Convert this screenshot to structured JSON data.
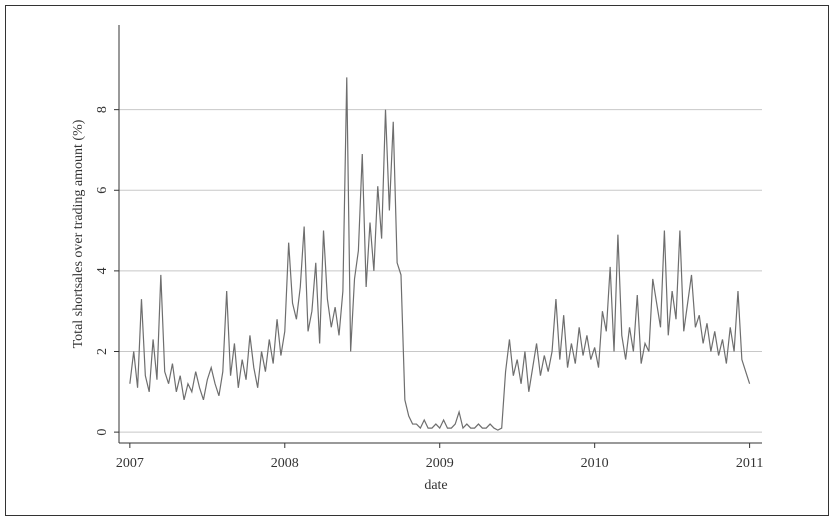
{
  "chart_data": {
    "type": "line",
    "xlabel": "date",
    "ylabel": "Total shortsales over trading amount (%)",
    "x": [
      2007,
      2007.025,
      2007.05,
      2007.075,
      2007.1,
      2007.125,
      2007.15,
      2007.175,
      2007.2,
      2007.225,
      2007.25,
      2007.275,
      2007.3,
      2007.325,
      2007.35,
      2007.375,
      2007.4,
      2007.425,
      2007.45,
      2007.475,
      2007.5,
      2007.525,
      2007.55,
      2007.575,
      2007.6,
      2007.625,
      2007.65,
      2007.675,
      2007.7,
      2007.725,
      2007.75,
      2007.775,
      2007.8,
      2007.825,
      2007.85,
      2007.875,
      2007.9,
      2007.925,
      2007.95,
      2007.975,
      2008,
      2008.025,
      2008.05,
      2008.075,
      2008.1,
      2008.125,
      2008.15,
      2008.175,
      2008.2,
      2008.225,
      2008.25,
      2008.275,
      2008.3,
      2008.325,
      2008.35,
      2008.375,
      2008.4,
      2008.425,
      2008.45,
      2008.475,
      2008.5,
      2008.525,
      2008.55,
      2008.575,
      2008.6,
      2008.625,
      2008.65,
      2008.675,
      2008.7,
      2008.725,
      2008.75,
      2008.775,
      2008.8,
      2008.825,
      2008.85,
      2008.875,
      2008.9,
      2008.925,
      2008.95,
      2008.975,
      2009,
      2009.025,
      2009.05,
      2009.075,
      2009.1,
      2009.125,
      2009.15,
      2009.175,
      2009.2,
      2009.225,
      2009.25,
      2009.275,
      2009.3,
      2009.325,
      2009.35,
      2009.375,
      2009.4,
      2009.425,
      2009.45,
      2009.475,
      2009.5,
      2009.525,
      2009.55,
      2009.575,
      2009.6,
      2009.625,
      2009.65,
      2009.675,
      2009.7,
      2009.725,
      2009.75,
      2009.775,
      2009.8,
      2009.825,
      2009.85,
      2009.875,
      2009.9,
      2009.925,
      2009.95,
      2009.975,
      2010,
      2010.025,
      2010.05,
      2010.075,
      2010.1,
      2010.125,
      2010.15,
      2010.175,
      2010.2,
      2010.225,
      2010.25,
      2010.275,
      2010.3,
      2010.325,
      2010.35,
      2010.375,
      2010.4,
      2010.425,
      2010.45,
      2010.475,
      2010.5,
      2010.525,
      2010.55,
      2010.575,
      2010.6,
      2010.625,
      2010.65,
      2010.675,
      2010.7,
      2010.725,
      2010.75,
      2010.775,
      2010.8,
      2010.825,
      2010.85,
      2010.875,
      2010.9,
      2010.925,
      2010.95,
      2010.975,
      2011
    ],
    "series": [
      {
        "color": "#6e6e6e",
        "values": [
          1.2,
          2.0,
          1.1,
          3.3,
          1.4,
          1.0,
          2.3,
          1.3,
          3.9,
          1.5,
          1.2,
          1.7,
          1.0,
          1.4,
          0.8,
          1.2,
          1.0,
          1.5,
          1.1,
          0.8,
          1.3,
          1.6,
          1.2,
          0.9,
          1.5,
          3.5,
          1.4,
          2.2,
          1.1,
          1.8,
          1.3,
          2.4,
          1.6,
          1.1,
          2.0,
          1.5,
          2.3,
          1.7,
          2.8,
          1.9,
          2.5,
          4.7,
          3.2,
          2.8,
          3.6,
          5.1,
          2.5,
          3.0,
          4.2,
          2.2,
          5.0,
          3.3,
          2.6,
          3.1,
          2.4,
          3.5,
          8.8,
          2.0,
          3.8,
          4.5,
          6.9,
          3.6,
          5.2,
          4.0,
          6.1,
          4.8,
          8.0,
          5.5,
          7.7,
          4.2,
          3.9,
          0.8,
          0.4,
          0.2,
          0.2,
          0.1,
          0.3,
          0.1,
          0.1,
          0.2,
          0.1,
          0.3,
          0.1,
          0.1,
          0.2,
          0.5,
          0.1,
          0.2,
          0.1,
          0.1,
          0.2,
          0.1,
          0.1,
          0.2,
          0.1,
          0.05,
          0.1,
          1.5,
          2.3,
          1.4,
          1.8,
          1.2,
          2.0,
          1.0,
          1.6,
          2.2,
          1.4,
          1.9,
          1.5,
          2.0,
          3.3,
          1.8,
          2.9,
          1.6,
          2.2,
          1.7,
          2.6,
          1.9,
          2.4,
          1.8,
          2.1,
          1.6,
          3.0,
          2.5,
          4.1,
          2.0,
          4.9,
          2.4,
          1.8,
          2.6,
          2.0,
          3.4,
          1.7,
          2.2,
          2.0,
          3.8,
          3.2,
          2.6,
          5.0,
          2.4,
          3.5,
          2.8,
          5.0,
          2.5,
          3.2,
          3.9,
          2.6,
          2.9,
          2.2,
          2.7,
          2.0,
          2.5,
          1.9,
          2.3,
          1.7,
          2.6,
          2.0,
          3.5,
          1.8,
          1.5,
          1.2
        ]
      }
    ],
    "xlim": [
      2006.93,
      2011.08
    ],
    "xticks": [
      2007,
      2008,
      2009,
      2010,
      2011
    ],
    "ylim": [
      -0.27,
      10.1
    ],
    "yticks": [
      0,
      2,
      4,
      6,
      8
    ],
    "grid": true
  }
}
